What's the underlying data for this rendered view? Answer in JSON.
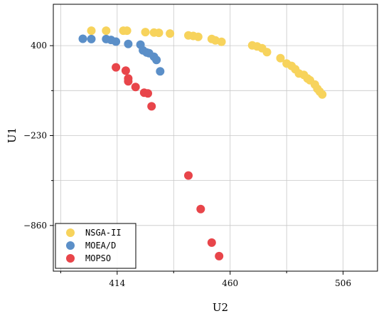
{
  "chart_data": {
    "type": "scatter",
    "xlabel": "U2",
    "ylabel": "U1",
    "xlim": [
      388,
      520
    ],
    "ylim": [
      -1180,
      690
    ],
    "xticks": [
      414,
      460,
      506
    ],
    "yticks": [
      400,
      -230,
      -860
    ],
    "xticks_minor": [
      391,
      437,
      483
    ],
    "yticks_minor": [
      85,
      -545
    ],
    "grid": true,
    "legend_position": "lower-left",
    "series": [
      {
        "name": "NSGA-II",
        "color": "#f7d35c",
        "x": [
          403.5,
          409.5,
          416.5,
          418,
          425.5,
          429,
          431,
          435.5,
          443,
          445,
          447,
          452.5,
          454,
          456.5,
          469,
          471,
          473,
          475,
          480.5,
          483,
          485,
          486.5,
          488,
          490,
          491.5,
          492.5,
          494.5,
          495.5,
          496.5,
          497.5
        ],
        "y": [
          505,
          505,
          505,
          505,
          495,
          492,
          490,
          485,
          472,
          468,
          462,
          447,
          437,
          427,
          402,
          395,
          382,
          355,
          312,
          275,
          258,
          235,
          205,
          195,
          170,
          158,
          128,
          98,
          78,
          58
        ]
      },
      {
        "name": "MOEA/D",
        "color": "#5b8fc8",
        "x": [
          400,
          403.5,
          409.5,
          411.5,
          413.5,
          418.5,
          423.5,
          424.5,
          426,
          427,
          429,
          430,
          431.5
        ],
        "y": [
          448,
          446,
          446,
          440,
          428,
          412,
          407,
          367,
          352,
          347,
          322,
          300,
          220
        ]
      },
      {
        "name": "MOPSO",
        "color": "#e8454a",
        "x": [
          413.5,
          417.5,
          418.5,
          418.5,
          421.5,
          425,
          426.5,
          428,
          443,
          448,
          452.5,
          455.5
        ],
        "y": [
          248,
          225,
          170,
          150,
          110,
          70,
          65,
          -25,
          -510,
          -745,
          -980,
          -1075
        ]
      }
    ]
  }
}
